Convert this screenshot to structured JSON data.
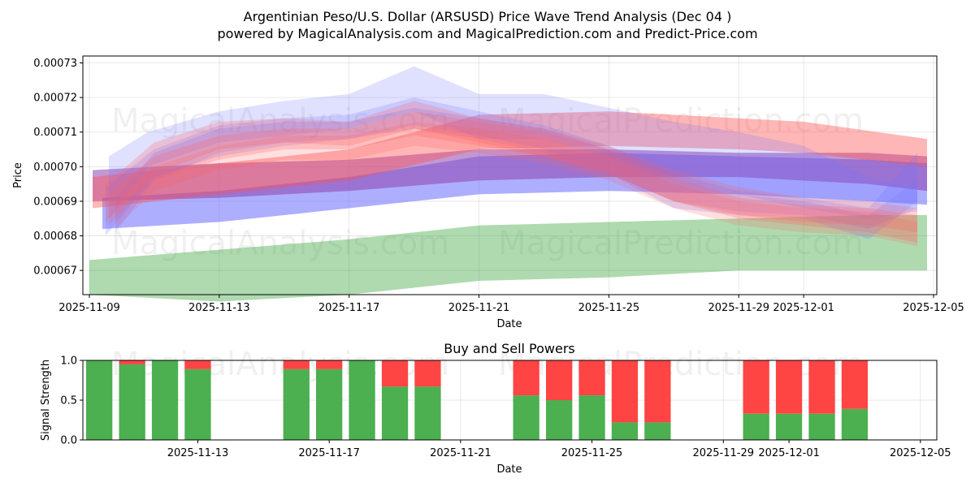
{
  "chart_data": [
    {
      "type": "area",
      "title": "Argentinian Peso/U.S. Dollar (ARSUSD) Price Wave Trend Analysis (Dec 04 )",
      "subtitle": "powered by MagicalAnalysis.com and MagicalPrediction.com and Predict-Price.com",
      "xlabel": "Date",
      "ylabel": "Price",
      "ylim": [
        0.000663,
        0.000732
      ],
      "xlim_days": [
        -0.2,
        26.1
      ],
      "x_origin": "2025-11-09",
      "x_ticks": [
        {
          "day": 0,
          "label": "2025-11-09"
        },
        {
          "day": 4,
          "label": "2025-11-13"
        },
        {
          "day": 8,
          "label": "2025-11-17"
        },
        {
          "day": 12,
          "label": "2025-11-21"
        },
        {
          "day": 16,
          "label": "2025-11-25"
        },
        {
          "day": 20,
          "label": "2025-11-29"
        },
        {
          "day": 22,
          "label": "2025-12-01"
        },
        {
          "day": 26,
          "label": "2025-12-05"
        }
      ],
      "y_ticks": [
        {
          "value": 0.00067,
          "label": "0.00067"
        },
        {
          "value": 0.00068,
          "label": "0.00068"
        },
        {
          "value": 0.00069,
          "label": "0.00069"
        },
        {
          "value": 0.0007,
          "label": "0.00070"
        },
        {
          "value": 0.00071,
          "label": "0.00071"
        },
        {
          "value": 0.00072,
          "label": "0.00072"
        },
        {
          "value": 0.00073,
          "label": "0.00073"
        }
      ],
      "watermarks": [
        "MagicalAnalysis.com",
        "MagicalPrediction.com"
      ],
      "colors": {
        "red": "#ff0000",
        "blue": "#0000ff",
        "green": "#008000",
        "purple": "#800080"
      },
      "series": [
        {
          "name": "green-band",
          "color": "#2e9e2e",
          "opacity": 0.38,
          "x": [
            0,
            4,
            8,
            12,
            16,
            20,
            24,
            25.8
          ],
          "upper": [
            0.000673,
            0.000676,
            0.000679,
            0.000683,
            0.000684,
            0.000685,
            0.000686,
            0.000686
          ],
          "lower": [
            0.000663,
            0.000661,
            0.000663,
            0.000667,
            0.000668,
            0.00067,
            0.00067,
            0.00067
          ]
        },
        {
          "name": "blue-lower-band",
          "color": "#6b6bff",
          "opacity": 0.55,
          "x": [
            0.4,
            4,
            8,
            12,
            16,
            20,
            24,
            25.8
          ],
          "upper": [
            0.000691,
            0.000693,
            0.000697,
            0.000703,
            0.000704,
            0.000703,
            0.000702,
            0.000701
          ],
          "lower": [
            0.000682,
            0.000684,
            0.000688,
            0.000692,
            0.000693,
            0.000692,
            0.00069,
            0.000689
          ]
        },
        {
          "name": "purple-band",
          "color": "#8e44ad",
          "opacity": 0.55,
          "x": [
            0.1,
            4,
            8,
            12,
            16,
            20,
            24,
            25.8
          ],
          "upper": [
            0.000699,
            0.000701,
            0.000702,
            0.000705,
            0.000705,
            0.000704,
            0.000704,
            0.000703
          ],
          "lower": [
            0.00069,
            0.000691,
            0.000693,
            0.000696,
            0.000697,
            0.000697,
            0.000695,
            0.000693
          ]
        },
        {
          "name": "red-upper-band",
          "color": "#ff5050",
          "opacity": 0.42,
          "x": [
            0.1,
            4,
            8,
            12,
            16,
            20,
            22,
            25.8
          ],
          "upper": [
            0.000697,
            0.000701,
            0.000705,
            0.000715,
            0.000716,
            0.000714,
            0.000713,
            0.000708
          ],
          "lower": [
            0.000688,
            0.000692,
            0.000696,
            0.000705,
            0.000706,
            0.000705,
            0.000704,
            0.0007
          ]
        },
        {
          "name": "blue-wave-1",
          "color": "#7070ff",
          "opacity": 0.22,
          "x": [
            0.6,
            1.8,
            4,
            6,
            8,
            10,
            12,
            14,
            16,
            18,
            20,
            22,
            24,
            25.5
          ],
          "upper": [
            0.000703,
            0.00071,
            0.000716,
            0.000719,
            0.000721,
            0.000729,
            0.000721,
            0.000721,
            0.000717,
            0.000713,
            0.00071,
            0.000706,
            0.000697,
            0.000693
          ],
          "lower": [
            0.000685,
            0.0007,
            0.000707,
            0.000709,
            0.000711,
            0.000716,
            0.000708,
            0.000708,
            0.000703,
            0.000697,
            0.000692,
            0.000688,
            0.000685,
            0.000687
          ]
        },
        {
          "name": "blue-wave-2",
          "color": "#7070ff",
          "opacity": 0.22,
          "x": [
            0.5,
            2,
            4,
            6,
            8,
            10,
            12,
            14,
            16,
            18,
            20,
            22,
            24,
            25.5
          ],
          "upper": [
            0.000694,
            0.000705,
            0.000712,
            0.000714,
            0.000715,
            0.00072,
            0.000716,
            0.000712,
            0.000706,
            0.000698,
            0.000693,
            0.000691,
            0.000688,
            0.000704
          ],
          "lower": [
            0.00068,
            0.000697,
            0.000703,
            0.000706,
            0.000708,
            0.000711,
            0.000708,
            0.000704,
            0.000698,
            0.000688,
            0.000686,
            0.000685,
            0.000679,
            0.00069
          ]
        },
        {
          "name": "blue-wave-3",
          "color": "#7070ff",
          "opacity": 0.22,
          "x": [
            0.8,
            2,
            4,
            6,
            8,
            10,
            12,
            14,
            16,
            18,
            20,
            22,
            24,
            25.5
          ],
          "upper": [
            0.000691,
            0.000704,
            0.000711,
            0.000713,
            0.000713,
            0.000717,
            0.000714,
            0.000711,
            0.000705,
            0.000697,
            0.000692,
            0.00069,
            0.000686,
            0.000696
          ],
          "lower": [
            0.000681,
            0.000696,
            0.000704,
            0.000707,
            0.000708,
            0.000712,
            0.000709,
            0.000705,
            0.000698,
            0.00069,
            0.000687,
            0.000686,
            0.000682,
            0.000688
          ]
        },
        {
          "name": "red-wave-1",
          "color": "#ff6060",
          "opacity": 0.25,
          "x": [
            0.5,
            2,
            4,
            6,
            8,
            10,
            12,
            14,
            16,
            18,
            20,
            22,
            24,
            25.5
          ],
          "upper": [
            0.000695,
            0.000707,
            0.000713,
            0.000714,
            0.000713,
            0.000719,
            0.000714,
            0.000711,
            0.000706,
            0.000699,
            0.000694,
            0.000691,
            0.00069,
            0.000688
          ],
          "lower": [
            0.000684,
            0.000698,
            0.000705,
            0.000707,
            0.000706,
            0.000711,
            0.000707,
            0.000703,
            0.000698,
            0.00069,
            0.000686,
            0.000684,
            0.000683,
            0.000681
          ]
        },
        {
          "name": "red-wave-2",
          "color": "#ff6060",
          "opacity": 0.25,
          "x": [
            0.6,
            2,
            4,
            6,
            8,
            10,
            12,
            14,
            16,
            18,
            20,
            22,
            24,
            25.5
          ],
          "upper": [
            0.000692,
            0.000703,
            0.000709,
            0.000711,
            0.000711,
            0.000716,
            0.000713,
            0.00071,
            0.000705,
            0.000697,
            0.000691,
            0.000689,
            0.000688,
            0.000686
          ],
          "lower": [
            0.000683,
            0.000696,
            0.000702,
            0.000705,
            0.000705,
            0.000709,
            0.000706,
            0.000703,
            0.000698,
            0.00069,
            0.000685,
            0.000683,
            0.000681,
            0.000678
          ]
        },
        {
          "name": "red-wave-3",
          "color": "#ff6060",
          "opacity": 0.2,
          "x": [
            0.8,
            2,
            4,
            6,
            8,
            10,
            12,
            14,
            16,
            18,
            20,
            22,
            24,
            25.5
          ],
          "upper": [
            0.00069,
            0.0007,
            0.000706,
            0.000709,
            0.000709,
            0.000713,
            0.000711,
            0.000708,
            0.000703,
            0.000695,
            0.00069,
            0.000688,
            0.000687,
            0.000684
          ],
          "lower": [
            0.000682,
            0.000693,
            0.000699,
            0.000702,
            0.000702,
            0.000706,
            0.000704,
            0.000701,
            0.000696,
            0.000688,
            0.000683,
            0.000681,
            0.00068,
            0.000677
          ]
        }
      ]
    },
    {
      "type": "bar",
      "title": "Buy and Sell Powers",
      "xlabel": "Date",
      "ylabel": "Signal Strength",
      "ylim": [
        0,
        1
      ],
      "xlim_days": [
        0.5,
        26.5
      ],
      "x_origin": "2025-11-09",
      "x_ticks": [
        {
          "day": 4,
          "label": "2025-11-13"
        },
        {
          "day": 8,
          "label": "2025-11-17"
        },
        {
          "day": 12,
          "label": "2025-11-21"
        },
        {
          "day": 16,
          "label": "2025-11-25"
        },
        {
          "day": 20,
          "label": "2025-11-29"
        },
        {
          "day": 22,
          "label": "2025-12-01"
        },
        {
          "day": 26,
          "label": "2025-12-05"
        }
      ],
      "y_ticks": [
        {
          "value": 0,
          "label": "0.0"
        },
        {
          "value": 0.5,
          "label": "0.5"
        },
        {
          "value": 1,
          "label": "1.0"
        }
      ],
      "watermarks": [
        "MagicalAnalysis.com",
        "MagicalPrediction.com"
      ],
      "buy_color": "#4caf50",
      "sell_color": "#ff4444",
      "bar_width_days": 0.8,
      "days": [
        1,
        2,
        3,
        4,
        7,
        8,
        9,
        10,
        11,
        14,
        15,
        16,
        17,
        18,
        21,
        22,
        23,
        24
      ],
      "buy": [
        1.0,
        0.95,
        1.0,
        0.89,
        0.89,
        0.89,
        1.0,
        0.67,
        0.67,
        0.56,
        0.5,
        0.56,
        0.22,
        0.22,
        0.33,
        0.33,
        0.33,
        0.39
      ],
      "sell": [
        0.0,
        0.05,
        0.0,
        0.11,
        0.11,
        0.11,
        0.0,
        0.33,
        0.33,
        0.44,
        0.5,
        0.44,
        0.78,
        0.78,
        0.67,
        0.67,
        0.67,
        0.61
      ]
    }
  ]
}
